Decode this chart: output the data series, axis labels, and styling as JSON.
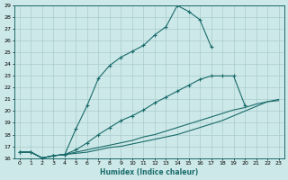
{
  "xlabel": "Humidex (Indice chaleur)",
  "ylabel": "",
  "xlim": [
    -0.5,
    23.5
  ],
  "ylim": [
    16,
    29
  ],
  "xticks": [
    0,
    1,
    2,
    3,
    4,
    5,
    6,
    7,
    8,
    9,
    10,
    11,
    12,
    13,
    14,
    15,
    16,
    17,
    18,
    19,
    20,
    21,
    22,
    23
  ],
  "yticks": [
    16,
    17,
    18,
    19,
    20,
    21,
    22,
    23,
    24,
    25,
    26,
    27,
    28,
    29
  ],
  "background_color": "#cde8e8",
  "line_color": "#1a6b6b",
  "grid_color": "#aacccc",
  "lines": [
    {
      "x": [
        0,
        1,
        2,
        3,
        4,
        5,
        6,
        7,
        8,
        9,
        10,
        11,
        12,
        13,
        14,
        15,
        16,
        17
      ],
      "y": [
        16.5,
        16.5,
        16.0,
        16.2,
        16.3,
        18.5,
        20.5,
        22.8,
        23.9,
        24.6,
        25.1,
        25.6,
        26.5,
        27.2,
        29.0,
        28.5,
        27.8,
        25.5
      ],
      "marker": "+"
    },
    {
      "x": [
        0,
        1,
        2,
        3,
        4,
        5,
        6,
        7,
        8,
        9,
        10,
        11,
        12,
        13,
        14,
        15,
        16,
        17,
        18,
        19,
        20
      ],
      "y": [
        16.5,
        16.5,
        16.0,
        16.2,
        16.3,
        16.7,
        17.3,
        18.0,
        18.6,
        19.2,
        19.6,
        20.1,
        20.7,
        21.2,
        21.7,
        22.2,
        22.7,
        23.0,
        23.0,
        23.0,
        20.5
      ],
      "marker": "+"
    },
    {
      "x": [
        0,
        1,
        2,
        3,
        4,
        5,
        6,
        7,
        8,
        9,
        10,
        11,
        12,
        13,
        14,
        15,
        16,
        17,
        18,
        19,
        20,
        21,
        22,
        23
      ],
      "y": [
        16.5,
        16.5,
        16.0,
        16.2,
        16.3,
        16.5,
        16.7,
        16.9,
        17.1,
        17.3,
        17.5,
        17.8,
        18.0,
        18.3,
        18.6,
        18.9,
        19.2,
        19.5,
        19.8,
        20.1,
        20.3,
        20.6,
        20.8,
        20.9
      ],
      "marker": null
    },
    {
      "x": [
        0,
        1,
        2,
        3,
        4,
        5,
        6,
        7,
        8,
        9,
        10,
        11,
        12,
        13,
        14,
        15,
        16,
        17,
        18,
        19,
        20,
        21,
        22,
        23
      ],
      "y": [
        16.5,
        16.5,
        16.0,
        16.2,
        16.3,
        16.4,
        16.5,
        16.7,
        16.9,
        17.0,
        17.2,
        17.4,
        17.6,
        17.8,
        18.0,
        18.3,
        18.6,
        18.9,
        19.2,
        19.6,
        20.0,
        20.4,
        20.8,
        21.0
      ],
      "marker": null
    }
  ]
}
